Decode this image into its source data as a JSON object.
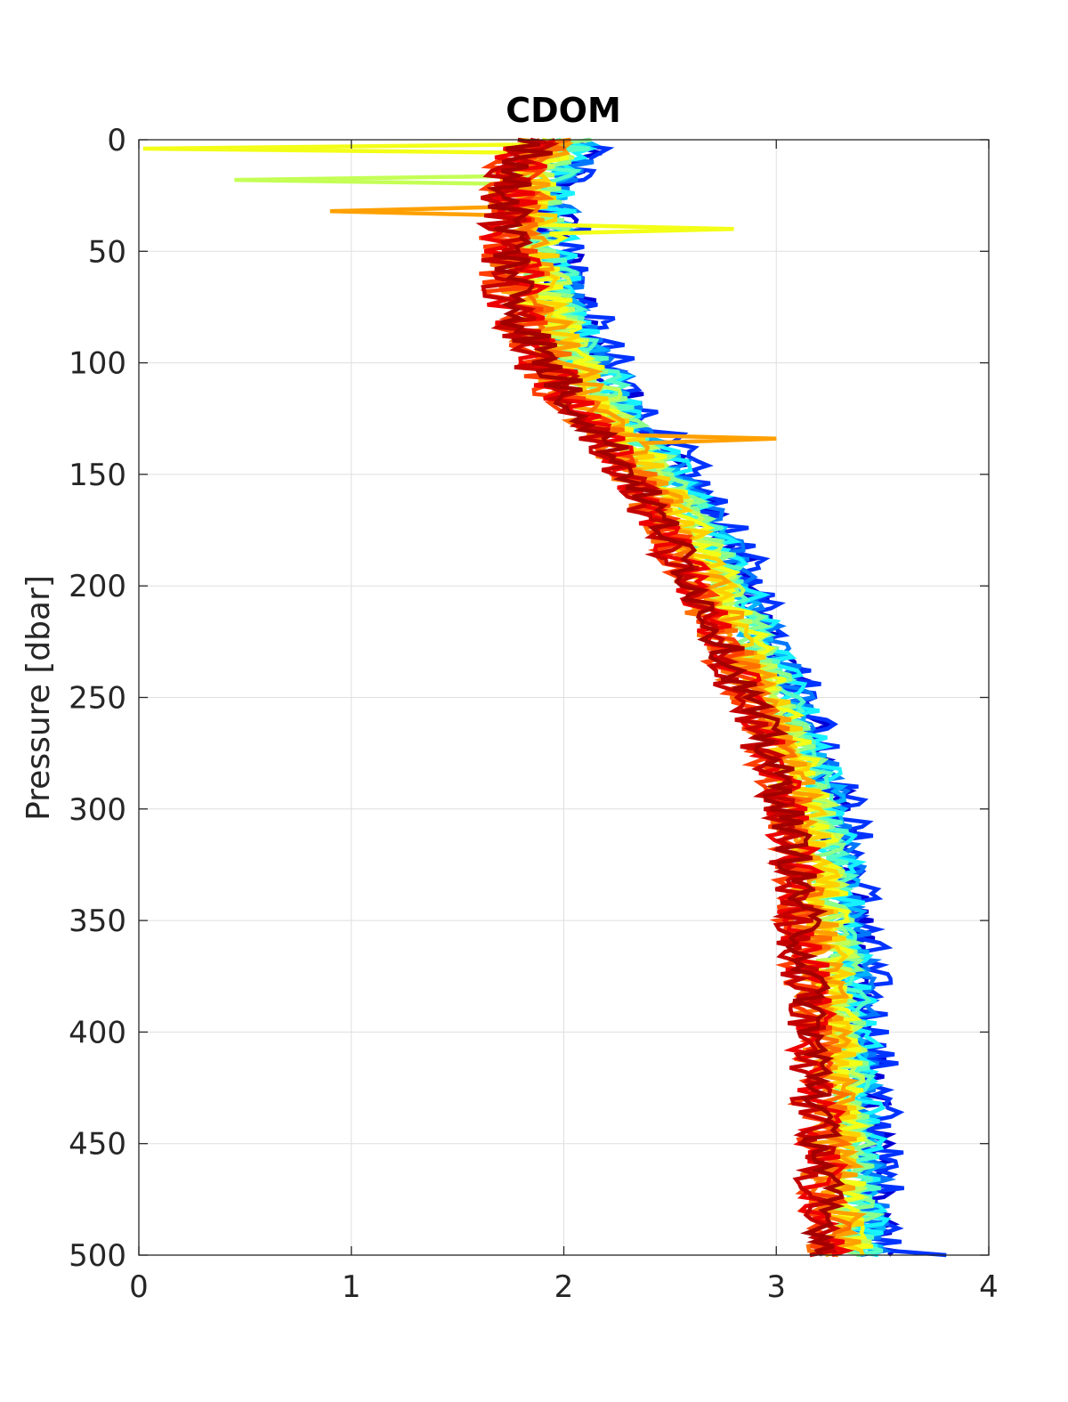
{
  "chart_data": {
    "type": "line",
    "title": "CDOM",
    "xlabel": "",
    "ylabel": "Pressure [dbar]",
    "xlim": [
      0,
      4
    ],
    "ylim": [
      0,
      500
    ],
    "y_reversed": true,
    "grid": true,
    "x_ticks": [
      "0",
      "1",
      "2",
      "3",
      "4"
    ],
    "y_ticks": [
      "0",
      "50",
      "100",
      "150",
      "200",
      "250",
      "300",
      "350",
      "400",
      "450",
      "500"
    ],
    "colormap": "jet",
    "profile_depth_step": 2,
    "mean_profile": {
      "pressure": [
        0,
        20,
        40,
        60,
        80,
        100,
        120,
        140,
        160,
        180,
        200,
        220,
        240,
        260,
        280,
        300,
        320,
        340,
        360,
        380,
        400,
        420,
        440,
        460,
        480,
        500
      ],
      "cdom": [
        1.9,
        1.78,
        1.78,
        1.8,
        1.84,
        1.95,
        2.1,
        2.28,
        2.42,
        2.55,
        2.65,
        2.75,
        2.85,
        2.95,
        3.02,
        3.08,
        3.12,
        3.15,
        3.17,
        3.19,
        3.21,
        3.23,
        3.24,
        3.25,
        3.26,
        3.27
      ]
    },
    "series": [
      {
        "color": "#0000d6",
        "offset": 0.2,
        "noise": 0.1
      },
      {
        "color": "#0033ff",
        "offset": 0.24,
        "noise": 0.12
      },
      {
        "color": "#0077ff",
        "offset": 0.19,
        "noise": 0.1
      },
      {
        "color": "#00b4ff",
        "offset": 0.16,
        "noise": 0.1
      },
      {
        "color": "#17f2ff",
        "offset": 0.18,
        "noise": 0.1
      },
      {
        "color": "#55ffc4",
        "offset": 0.14,
        "noise": 0.1
      },
      {
        "color": "#8eff8a",
        "offset": 0.12,
        "noise": 0.1
      },
      {
        "color": "#c4ff55",
        "offset": 0.1,
        "noise": 0.1
      },
      {
        "color": "#f3ff17",
        "offset": 0.08,
        "noise": 0.11
      },
      {
        "color": "#ffd200",
        "offset": 0.05,
        "noise": 0.11
      },
      {
        "color": "#ffa000",
        "offset": 0.02,
        "noise": 0.12
      },
      {
        "color": "#ff7000",
        "offset": -0.02,
        "noise": 0.12
      },
      {
        "color": "#ff3e00",
        "offset": -0.05,
        "noise": 0.11
      },
      {
        "color": "#ee0000",
        "offset": -0.04,
        "noise": 0.11
      },
      {
        "color": "#c40000",
        "offset": -0.07,
        "noise": 0.1
      },
      {
        "color": "#a30000",
        "offset": -0.03,
        "noise": 0.09
      }
    ],
    "annotations": [
      {
        "pressure": 4,
        "cdom": 0.02,
        "color": "#f3ff17"
      },
      {
        "pressure": 18,
        "cdom": 0.45,
        "color": "#c4ff55"
      },
      {
        "pressure": 32,
        "cdom": 0.9,
        "color": "#ffa000"
      },
      {
        "pressure": 134,
        "cdom": 3.0,
        "color": "#ffa000"
      },
      {
        "pressure": 40,
        "cdom": 2.8,
        "color": "#f3ff17"
      },
      {
        "pressure": 500,
        "cdom": 3.8,
        "color": "#0033ff"
      }
    ]
  }
}
